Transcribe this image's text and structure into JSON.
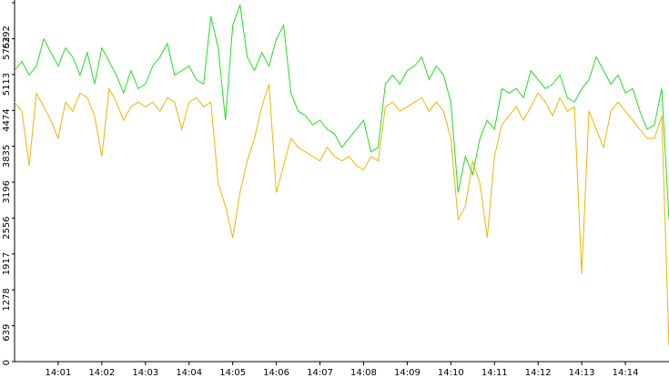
{
  "chart_data": {
    "type": "line",
    "x": [
      "14:00:00",
      "14:00:10",
      "14:00:20",
      "14:00:30",
      "14:00:40",
      "14:00:50",
      "14:01:00",
      "14:01:10",
      "14:01:20",
      "14:01:30",
      "14:01:40",
      "14:01:50",
      "14:02:00",
      "14:02:10",
      "14:02:20",
      "14:02:30",
      "14:02:40",
      "14:02:50",
      "14:03:00",
      "14:03:10",
      "14:03:20",
      "14:03:30",
      "14:03:40",
      "14:03:50",
      "14:04:00",
      "14:04:10",
      "14:04:20",
      "14:04:30",
      "14:04:40",
      "14:04:50",
      "14:05:00",
      "14:05:10",
      "14:05:20",
      "14:05:30",
      "14:05:40",
      "14:05:50",
      "14:06:00",
      "14:06:10",
      "14:06:20",
      "14:06:30",
      "14:06:40",
      "14:06:50",
      "14:07:00",
      "14:07:10",
      "14:07:20",
      "14:07:30",
      "14:07:40",
      "14:07:50",
      "14:08:00",
      "14:08:10",
      "14:08:20",
      "14:08:30",
      "14:08:40",
      "14:08:50",
      "14:09:00",
      "14:09:10",
      "14:09:20",
      "14:09:30",
      "14:09:40",
      "14:09:50",
      "14:10:00",
      "14:10:10",
      "14:10:20",
      "14:10:30",
      "14:10:40",
      "14:10:50",
      "14:11:00",
      "14:11:10",
      "14:11:20",
      "14:11:30",
      "14:11:40",
      "14:11:50",
      "14:12:00",
      "14:12:10",
      "14:12:20",
      "14:12:30",
      "14:12:40",
      "14:12:50",
      "14:13:00",
      "14:13:10",
      "14:13:20",
      "14:13:30",
      "14:13:40",
      "14:13:50",
      "14:14:00",
      "14:14:10",
      "14:14:20",
      "14:14:30",
      "14:14:40",
      "14:14:50",
      "14:15:00"
    ],
    "series": [
      {
        "color": "#22dd22",
        "values": [
          5184,
          5345,
          5104,
          5265,
          5748,
          5506,
          5265,
          5587,
          5426,
          5104,
          5506,
          4943,
          5587,
          5345,
          5104,
          4782,
          5184,
          4862,
          4943,
          5265,
          5426,
          5667,
          5104,
          5184,
          5265,
          5023,
          4943,
          6150,
          5587,
          4299,
          5989,
          6360,
          5426,
          5184,
          5506,
          5265,
          5748,
          5989,
          4782,
          4460,
          4379,
          4218,
          4299,
          4138,
          4057,
          3816,
          3977,
          4138,
          4299,
          3735,
          3816,
          4943,
          5104,
          4943,
          5184,
          5265,
          5426,
          5023,
          5265,
          5104,
          4621,
          3011,
          3655,
          3333,
          3977,
          4299,
          4138,
          4862,
          4782,
          4862,
          4701,
          5184,
          5023,
          4862,
          4943,
          5104,
          4701,
          4621,
          4862,
          5023,
          5426,
          5184,
          4943,
          5104,
          4782,
          4862,
          4460,
          4138,
          4218,
          4862,
          2528
        ]
      },
      {
        "color": "#f0b400",
        "values": [
          4621,
          4460,
          3494,
          4782,
          4540,
          4299,
          3977,
          4621,
          4460,
          4782,
          4701,
          4379,
          3655,
          4862,
          4621,
          4299,
          4540,
          4621,
          4540,
          4621,
          4460,
          4701,
          4621,
          4138,
          4621,
          4701,
          4540,
          4621,
          3172,
          2769,
          2206,
          3011,
          3574,
          3977,
          4540,
          4943,
          3011,
          3494,
          3977,
          3816,
          3735,
          3655,
          3574,
          3816,
          3655,
          3574,
          3655,
          3494,
          3413,
          3655,
          3574,
          4540,
          4621,
          4460,
          4540,
          4621,
          4701,
          4460,
          4621,
          4460,
          3977,
          2528,
          2769,
          3574,
          3172,
          2206,
          3655,
          4218,
          4379,
          4540,
          4299,
          4540,
          4782,
          4621,
          4379,
          4701,
          4460,
          4540,
          1562,
          4460,
          4138,
          3816,
          4460,
          4621,
          4460,
          4299,
          4138,
          3977,
          3977,
          4379,
          274
        ]
      }
    ],
    "xlim": [
      "14:00:00",
      "14:15:00"
    ],
    "xticks": [
      "14:01",
      "14:02",
      "14:03",
      "14:04",
      "14:05",
      "14:06",
      "14:07",
      "14:08",
      "14:09",
      "14:10",
      "14:11",
      "14:12",
      "14:13",
      "14:14"
    ],
    "ylim": [
      0,
      6392
    ],
    "yticks": [
      0,
      639,
      1278,
      1917,
      2556,
      3196,
      3835,
      4474,
      5113,
      5752,
      6392
    ]
  }
}
